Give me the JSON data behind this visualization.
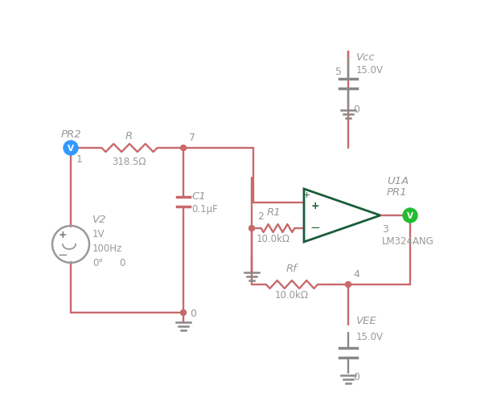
{
  "bg_color": "#ffffff",
  "wire_color": "#c8696b",
  "component_color": "#1a5c3a",
  "gray_text": "#999999",
  "node_color_blue": "#3399ff",
  "node_color_green": "#22bb33",
  "labels": {
    "PR2": "PR2",
    "R": "R",
    "node7": "7",
    "R_val": "318.5Ω",
    "node1": "1",
    "V2": "V2",
    "V2_val1": "1V",
    "V2_val2": "100Hz",
    "V2_val3": "0°",
    "V2_val4": "0",
    "C1": "C1",
    "C1_val": "0.1μF",
    "R1": "R1",
    "R1_val": "10.0kΩ",
    "node2": "2",
    "Rf": "Rf",
    "Rf_val": "10.0kΩ",
    "node4": "4",
    "node5": "5",
    "node0": "0",
    "Vcc": "Vcc",
    "Vcc_val": "15.0V",
    "VEE": "VEE",
    "VEE_val": "15.0V",
    "U1A": "U1A",
    "PR1": "PR1",
    "LM324ANG": "LM324ANG",
    "node3": "3"
  }
}
